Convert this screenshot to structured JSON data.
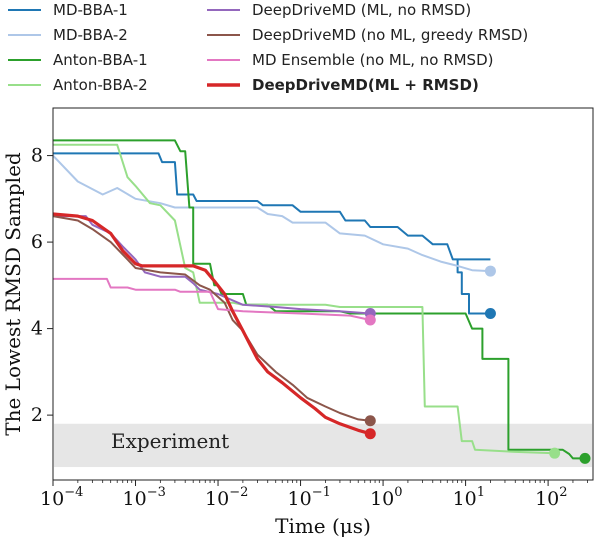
{
  "chart_data": {
    "type": "line",
    "xlabel": "Time (μs)",
    "ylabel": "The Lowest RMSD Sampled",
    "xscale": "log",
    "xlim": [
      0.0001,
      350
    ],
    "ylim": [
      0.5,
      9.1
    ],
    "x_ticks": [
      {
        "value": 0.0001,
        "base": "10",
        "exp": "−4"
      },
      {
        "value": 0.001,
        "base": "10",
        "exp": "−3"
      },
      {
        "value": 0.01,
        "base": "10",
        "exp": "−2"
      },
      {
        "value": 0.1,
        "base": "10",
        "exp": "−1"
      },
      {
        "value": 1,
        "base": "10",
        "exp": "0"
      },
      {
        "value": 10,
        "base": "10",
        "exp": "1"
      },
      {
        "value": 100,
        "base": "10",
        "exp": "2"
      }
    ],
    "y_ticks": [
      2,
      4,
      6,
      8
    ],
    "grid": false,
    "legend_position": "top (above plot)",
    "band": {
      "label": "Experiment",
      "y_range": [
        0.8,
        1.8
      ],
      "color": "#e6e6e6"
    },
    "series": [
      {
        "name": "MD-BBA-1",
        "color": "#1f77b4",
        "width": 2,
        "bold": false,
        "points": [
          [
            0.0001,
            8.05
          ],
          [
            0.0019,
            8.05
          ],
          [
            0.0021,
            7.85
          ],
          [
            0.003,
            7.85
          ],
          [
            0.0032,
            7.1
          ],
          [
            0.005,
            7.1
          ],
          [
            0.0055,
            6.95
          ],
          [
            0.03,
            6.95
          ],
          [
            0.035,
            6.85
          ],
          [
            0.08,
            6.85
          ],
          [
            0.1,
            6.7
          ],
          [
            0.3,
            6.7
          ],
          [
            0.35,
            6.5
          ],
          [
            0.6,
            6.5
          ],
          [
            0.7,
            6.35
          ],
          [
            1.5,
            6.35
          ],
          [
            2,
            6.15
          ],
          [
            3,
            6.15
          ],
          [
            4,
            5.95
          ],
          [
            6,
            5.95
          ],
          [
            7,
            5.6
          ],
          [
            20,
            5.6
          ]
        ],
        "end_marker": [
          20,
          4.35
        ],
        "tail": [
          [
            8,
            5.6
          ],
          [
            8,
            5.3
          ],
          [
            9,
            5.3
          ],
          [
            9,
            4.8
          ],
          [
            11,
            4.8
          ],
          [
            11,
            4.35
          ],
          [
            20,
            4.35
          ]
        ]
      },
      {
        "name": "MD-BBA-2",
        "color": "#aec7e8",
        "width": 2,
        "bold": false,
        "points": [
          [
            0.0001,
            8.0
          ],
          [
            0.0002,
            7.4
          ],
          [
            0.0004,
            7.1
          ],
          [
            0.0006,
            7.25
          ],
          [
            0.001,
            7.0
          ],
          [
            0.002,
            6.9
          ],
          [
            0.003,
            6.8
          ],
          [
            0.03,
            6.8
          ],
          [
            0.04,
            6.65
          ],
          [
            0.06,
            6.6
          ],
          [
            0.08,
            6.45
          ],
          [
            0.2,
            6.45
          ],
          [
            0.3,
            6.2
          ],
          [
            0.6,
            6.15
          ],
          [
            1,
            5.95
          ],
          [
            2,
            5.85
          ],
          [
            3,
            5.7
          ],
          [
            5,
            5.55
          ],
          [
            8,
            5.45
          ],
          [
            12,
            5.35
          ],
          [
            20,
            5.33
          ]
        ],
        "end_marker": [
          20,
          5.33
        ]
      },
      {
        "name": "Anton-BBA-1",
        "color": "#2ca02c",
        "width": 2,
        "bold": false,
        "points": [
          [
            0.0001,
            8.35
          ],
          [
            0.003,
            8.35
          ],
          [
            0.0035,
            8.1
          ],
          [
            0.004,
            8.1
          ],
          [
            0.0045,
            6.8
          ],
          [
            0.005,
            6.8
          ],
          [
            0.005,
            5.5
          ],
          [
            0.008,
            5.5
          ],
          [
            0.009,
            5.0
          ],
          [
            0.01,
            5.0
          ],
          [
            0.011,
            4.8
          ],
          [
            0.02,
            4.8
          ],
          [
            0.022,
            4.55
          ],
          [
            0.04,
            4.55
          ],
          [
            0.05,
            4.4
          ],
          [
            0.3,
            4.4
          ],
          [
            0.4,
            4.35
          ],
          [
            5,
            4.35
          ],
          [
            10,
            4.35
          ],
          [
            12,
            4.0
          ],
          [
            16,
            4.0
          ],
          [
            16,
            3.3
          ],
          [
            33,
            3.3
          ],
          [
            33,
            1.2
          ],
          [
            150,
            1.2
          ],
          [
            180,
            1.1
          ],
          [
            200,
            1.0
          ],
          [
            280,
            1.0
          ]
        ],
        "end_marker": [
          280,
          1.0
        ]
      },
      {
        "name": "Anton-BBA-2",
        "color": "#98df8a",
        "width": 2,
        "bold": false,
        "points": [
          [
            0.0001,
            8.25
          ],
          [
            0.0006,
            8.25
          ],
          [
            0.0008,
            7.5
          ],
          [
            0.001,
            7.3
          ],
          [
            0.0015,
            6.9
          ],
          [
            0.002,
            6.85
          ],
          [
            0.003,
            6.5
          ],
          [
            0.004,
            5.4
          ],
          [
            0.005,
            5.3
          ],
          [
            0.006,
            4.6
          ],
          [
            0.015,
            4.6
          ],
          [
            0.02,
            4.55
          ],
          [
            0.2,
            4.55
          ],
          [
            0.3,
            4.5
          ],
          [
            3,
            4.5
          ],
          [
            3.2,
            2.2
          ],
          [
            8,
            2.2
          ],
          [
            9,
            1.4
          ],
          [
            12,
            1.4
          ],
          [
            13,
            1.2
          ],
          [
            40,
            1.15
          ],
          [
            120,
            1.12
          ]
        ],
        "end_marker": [
          120,
          1.12
        ]
      },
      {
        "name": "DeepDriveMD (ML, no RMSD)",
        "color": "#9467bd",
        "width": 2,
        "bold": false,
        "points": [
          [
            0.0001,
            6.6
          ],
          [
            0.00025,
            6.6
          ],
          [
            0.0003,
            6.4
          ],
          [
            0.0005,
            6.2
          ],
          [
            0.0007,
            5.9
          ],
          [
            0.001,
            5.6
          ],
          [
            0.0013,
            5.3
          ],
          [
            0.002,
            5.2
          ],
          [
            0.004,
            5.2
          ],
          [
            0.005,
            5.05
          ],
          [
            0.006,
            4.9
          ],
          [
            0.01,
            4.8
          ],
          [
            0.02,
            4.55
          ],
          [
            0.05,
            4.5
          ],
          [
            0.1,
            4.45
          ],
          [
            0.3,
            4.4
          ],
          [
            0.7,
            4.35
          ]
        ],
        "end_marker": [
          0.7,
          4.35
        ]
      },
      {
        "name": "DeepDriveMD (no ML, greedy RMSD)",
        "color": "#8c564b",
        "width": 2,
        "bold": false,
        "points": [
          [
            0.0001,
            6.6
          ],
          [
            0.0002,
            6.5
          ],
          [
            0.0003,
            6.3
          ],
          [
            0.0005,
            6.0
          ],
          [
            0.0008,
            5.6
          ],
          [
            0.001,
            5.4
          ],
          [
            0.002,
            5.3
          ],
          [
            0.004,
            5.25
          ],
          [
            0.006,
            5.0
          ],
          [
            0.008,
            4.9
          ],
          [
            0.012,
            4.6
          ],
          [
            0.015,
            4.2
          ],
          [
            0.02,
            3.95
          ],
          [
            0.03,
            3.4
          ],
          [
            0.05,
            3.0
          ],
          [
            0.08,
            2.7
          ],
          [
            0.12,
            2.4
          ],
          [
            0.2,
            2.2
          ],
          [
            0.3,
            2.05
          ],
          [
            0.5,
            1.9
          ],
          [
            0.7,
            1.87
          ]
        ],
        "end_marker": [
          0.7,
          1.87
        ]
      },
      {
        "name": "MD Ensemble (no ML, no RMSD)",
        "color": "#e377c2",
        "width": 2,
        "bold": false,
        "points": [
          [
            0.0001,
            5.15
          ],
          [
            0.00045,
            5.15
          ],
          [
            0.0005,
            4.95
          ],
          [
            0.0008,
            4.95
          ],
          [
            0.001,
            4.9
          ],
          [
            0.003,
            4.9
          ],
          [
            0.0035,
            4.85
          ],
          [
            0.008,
            4.85
          ],
          [
            0.01,
            4.45
          ],
          [
            0.02,
            4.4
          ],
          [
            0.1,
            4.35
          ],
          [
            0.4,
            4.3
          ],
          [
            0.7,
            4.2
          ]
        ],
        "end_marker": [
          0.7,
          4.2
        ]
      },
      {
        "name": "DeepDriveMD(ML + RMSD)",
        "color": "#d62728",
        "width": 3.2,
        "bold": true,
        "points": [
          [
            0.0001,
            6.65
          ],
          [
            0.0002,
            6.6
          ],
          [
            0.0003,
            6.5
          ],
          [
            0.0005,
            6.2
          ],
          [
            0.0007,
            5.8
          ],
          [
            0.001,
            5.5
          ],
          [
            0.0012,
            5.45
          ],
          [
            0.005,
            5.45
          ],
          [
            0.007,
            5.35
          ],
          [
            0.009,
            5.1
          ],
          [
            0.012,
            4.8
          ],
          [
            0.015,
            4.4
          ],
          [
            0.02,
            3.95
          ],
          [
            0.03,
            3.3
          ],
          [
            0.04,
            3.0
          ],
          [
            0.06,
            2.75
          ],
          [
            0.1,
            2.4
          ],
          [
            0.15,
            2.15
          ],
          [
            0.2,
            1.95
          ],
          [
            0.3,
            1.8
          ],
          [
            0.5,
            1.65
          ],
          [
            0.7,
            1.57
          ]
        ],
        "end_marker": [
          0.7,
          1.57
        ]
      }
    ]
  }
}
